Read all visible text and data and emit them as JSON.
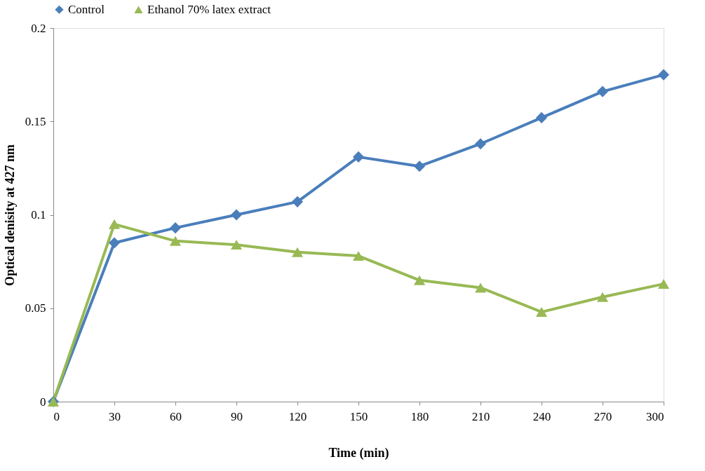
{
  "chart_data": {
    "type": "line",
    "xlabel": "Time (min)",
    "ylabel": "Optical denisity at 427 nm",
    "x": [
      0,
      30,
      60,
      90,
      120,
      150,
      180,
      210,
      240,
      270,
      300
    ],
    "xlim": [
      0,
      300
    ],
    "xticks": [
      0,
      30,
      60,
      90,
      120,
      150,
      180,
      210,
      240,
      270,
      300
    ],
    "ylim": [
      0,
      0.2
    ],
    "yticks": [
      0,
      0.05,
      0.1,
      0.15,
      0.2
    ],
    "grid": false,
    "legend": "top",
    "line_style": "solid",
    "series": [
      {
        "name": "Control",
        "color": "#4a7ebb",
        "marker": "diamond",
        "values": [
          0,
          0.085,
          0.093,
          0.1,
          0.107,
          0.131,
          0.126,
          0.138,
          0.152,
          0.166,
          0.175
        ]
      },
      {
        "name": "Ethanol 70% latex extract",
        "color": "#98b954",
        "marker": "triangle",
        "values": [
          0,
          0.095,
          0.086,
          0.084,
          0.08,
          0.078,
          0.065,
          0.061,
          0.048,
          0.056,
          0.063
        ]
      }
    ]
  }
}
